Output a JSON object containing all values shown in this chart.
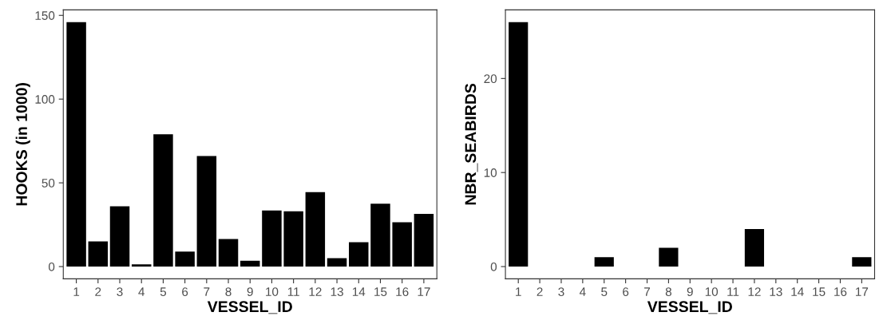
{
  "chart_data": [
    {
      "type": "bar",
      "xlabel": "VESSEL_ID",
      "ylabel": "HOOKS (in 1000)",
      "categories": [
        "1",
        "2",
        "3",
        "4",
        "5",
        "6",
        "7",
        "8",
        "9",
        "10",
        "11",
        "12",
        "13",
        "14",
        "15",
        "16",
        "17"
      ],
      "values": [
        146,
        15,
        36,
        1.3,
        79,
        9,
        66,
        16.5,
        3.5,
        33.5,
        33,
        44.5,
        5,
        14.5,
        37.5,
        26.5,
        31.5
      ],
      "color": "#000000",
      "ylim": [
        -7.3,
        153.3
      ],
      "yticks": [
        0,
        50,
        100,
        150
      ],
      "grid": false
    },
    {
      "type": "bar",
      "xlabel": "VESSEL_ID",
      "ylabel": "NBR_SEABIRDS",
      "categories": [
        "1",
        "2",
        "3",
        "4",
        "5",
        "6",
        "7",
        "8",
        "9",
        "10",
        "11",
        "12",
        "13",
        "14",
        "15",
        "16",
        "17"
      ],
      "values": [
        26,
        0,
        0,
        0,
        1,
        0,
        0,
        2,
        0,
        0,
        0,
        4,
        0,
        0,
        0,
        0,
        1
      ],
      "color": "#000000",
      "ylim": [
        -1.3,
        27.3
      ],
      "yticks": [
        0,
        10,
        20
      ],
      "grid": false
    }
  ]
}
